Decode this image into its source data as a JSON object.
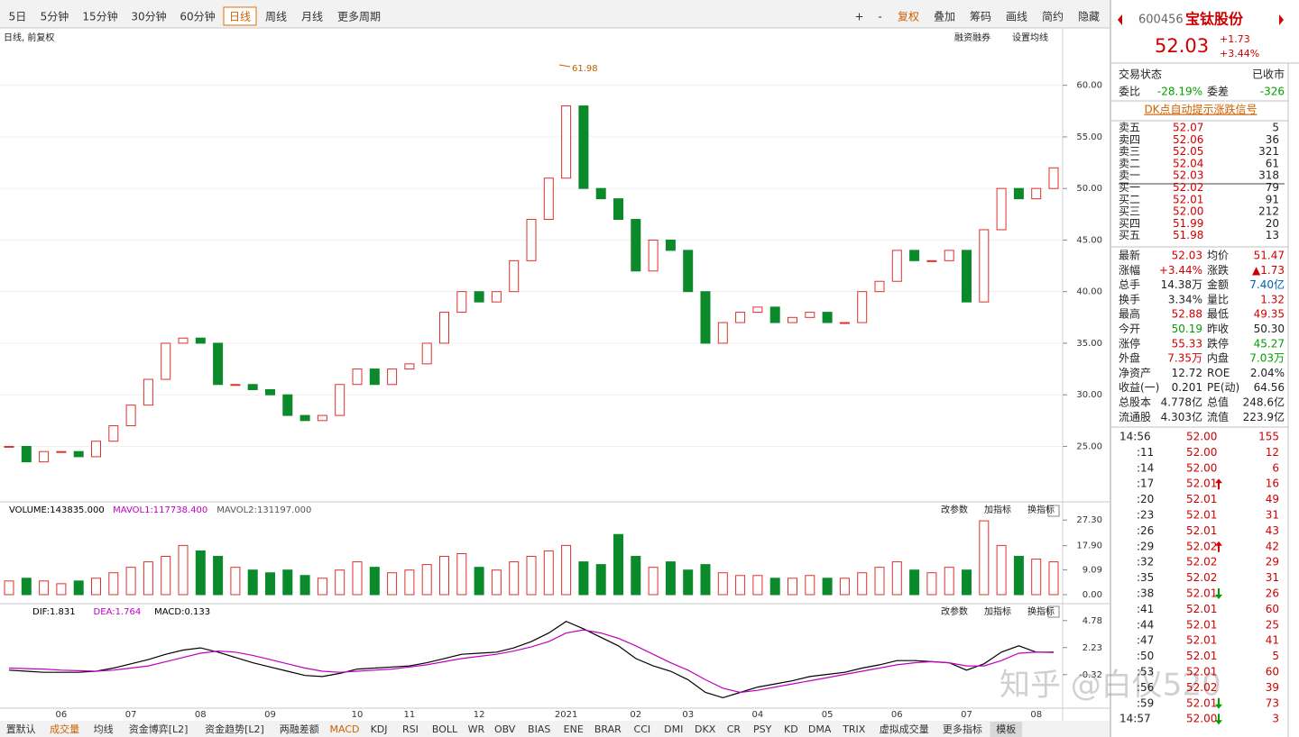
{
  "toolbar": {
    "left": [
      "5日",
      "5分钟",
      "15分钟",
      "30分钟",
      "60分钟",
      "日线",
      "周线",
      "月线",
      "更多周期"
    ],
    "active": 5,
    "right": [
      "+",
      "-",
      "复权",
      "叠加",
      "筹码",
      "画线",
      "简约",
      "隐藏"
    ]
  },
  "chart_data": [
    {
      "type": "candlestick",
      "title": "日线, 前复权",
      "links": [
        "融资融券",
        "设置均线"
      ],
      "up_color": "#e0302a",
      "down_color": "#0a8a2a",
      "grid": true,
      "categories": [
        null,
        null,
        null,
        "06",
        null,
        null,
        null,
        "07",
        null,
        null,
        null,
        "08",
        null,
        null,
        null,
        "09",
        null,
        null,
        null,
        null,
        "10",
        null,
        null,
        "11",
        null,
        null,
        null,
        "12",
        null,
        null,
        null,
        null,
        "2021",
        null,
        null,
        null,
        "02",
        null,
        null,
        "03",
        null,
        null,
        null,
        "04",
        null,
        null,
        null,
        "05",
        null,
        null,
        null,
        "06",
        null,
        null,
        null,
        "07",
        null,
        null,
        null,
        "08",
        null
      ],
      "values": [
        25,
        23.5,
        24.5,
        24.5,
        24,
        25.5,
        27,
        29,
        31.5,
        35,
        35.5,
        35,
        31,
        31,
        30.5,
        30,
        28,
        27.5,
        28,
        31,
        32.5,
        31,
        32.5,
        33,
        35,
        38,
        40,
        39,
        40,
        43,
        47,
        51,
        58,
        50,
        49,
        47,
        42,
        45,
        44,
        40,
        35,
        37,
        38,
        38.5,
        37,
        37.5,
        38,
        37,
        37,
        40,
        41,
        44,
        43,
        43,
        44,
        39,
        46,
        50,
        49,
        50,
        52
      ],
      "high": 61.98,
      "ylim": [
        19.8,
        63.9
      ],
      "yticks": [
        {
          "value": 25,
          "label": "25.00"
        },
        {
          "value": 30,
          "label": "30.00"
        },
        {
          "value": 35,
          "label": "35.00"
        },
        {
          "value": 40,
          "label": "40.00"
        },
        {
          "value": 45,
          "label": "45.00"
        },
        {
          "value": 50,
          "label": "50.00"
        },
        {
          "value": 55,
          "label": "55.00"
        },
        {
          "value": 60,
          "label": "60.00"
        }
      ]
    },
    {
      "type": "bar",
      "legend": [
        "VOLUME:143835.000",
        "MAVOL1:117738.400",
        "MAVOL2:131197.000"
      ],
      "legend_colors": [
        "#000000",
        "#c000c0",
        "#555555"
      ],
      "tools": [
        "改参数",
        "加指标",
        "换指标"
      ],
      "values": [
        5,
        6,
        5,
        4,
        5,
        6,
        8,
        10,
        12,
        14,
        18,
        16,
        14,
        10,
        9,
        8,
        9,
        7,
        6,
        9,
        12,
        10,
        8,
        9,
        11,
        14,
        15,
        10,
        9,
        12,
        14,
        16,
        18,
        12,
        11,
        22,
        14,
        10,
        12,
        9,
        11,
        8,
        7,
        7,
        6,
        6,
        7,
        6,
        6,
        8,
        10,
        12,
        9,
        8,
        10,
        9,
        27,
        18,
        14,
        13,
        12
      ],
      "ylim": [
        0,
        29
      ],
      "yticks": [
        {
          "value": 0,
          "label": "0.00"
        },
        {
          "value": 9.09,
          "label": "9.09"
        },
        {
          "value": 17.9,
          "label": "17.90"
        },
        {
          "value": 27.3,
          "label": "27.30"
        }
      ]
    },
    {
      "type": "line",
      "legend": [
        "DIF:1.831",
        "DEA:1.764",
        "MACD:0.133"
      ],
      "tools": [
        "改参数",
        "加指标",
        "换指标"
      ],
      "series": [
        {
          "name": "DIF",
          "color": "#000000",
          "values": [
            0.1,
            0.0,
            -0.1,
            -0.1,
            -0.1,
            0.0,
            0.3,
            0.7,
            1.1,
            1.6,
            2.0,
            2.2,
            1.8,
            1.3,
            0.8,
            0.4,
            0.0,
            -0.4,
            -0.5,
            -0.2,
            0.2,
            0.3,
            0.4,
            0.5,
            0.8,
            1.2,
            1.6,
            1.7,
            1.8,
            2.2,
            2.8,
            3.6,
            4.7,
            4.0,
            3.2,
            2.4,
            1.2,
            0.5,
            0.0,
            -0.8,
            -2.0,
            -2.5,
            -2.0,
            -1.5,
            -1.2,
            -0.9,
            -0.5,
            -0.3,
            -0.1,
            0.3,
            0.6,
            1.0,
            1.0,
            0.9,
            0.8,
            0.1,
            0.7,
            1.8,
            2.4,
            1.8,
            1.8
          ]
        },
        {
          "name": "DEA",
          "color": "#c000c0",
          "values": [
            0.3,
            0.25,
            0.2,
            0.1,
            0.05,
            0.0,
            0.1,
            0.3,
            0.5,
            0.9,
            1.3,
            1.7,
            1.9,
            1.8,
            1.5,
            1.1,
            0.7,
            0.3,
            0.0,
            -0.1,
            0.0,
            0.1,
            0.2,
            0.4,
            0.6,
            0.9,
            1.2,
            1.4,
            1.6,
            1.9,
            2.3,
            2.8,
            3.6,
            3.9,
            3.6,
            3.1,
            2.4,
            1.6,
            0.8,
            0.1,
            -0.8,
            -1.6,
            -2.0,
            -1.8,
            -1.5,
            -1.2,
            -0.9,
            -0.6,
            -0.3,
            0.0,
            0.3,
            0.6,
            0.8,
            0.9,
            0.8,
            0.5,
            0.5,
            1.0,
            1.7,
            1.8,
            1.76
          ]
        }
      ],
      "ylim": [
        -3.4,
        5.1
      ],
      "yticks": [
        -0.32,
        2.23,
        4.78
      ]
    }
  ],
  "quote": {
    "code": "600456",
    "name": "宝钛股份",
    "price": "52.03",
    "change": "+1.73",
    "pct": "+3.44%",
    "status": [
      "交易状态",
      "已收市"
    ],
    "ratio": [
      "委比",
      "-28.19%",
      "委差",
      "-326"
    ],
    "link": "DK点自动提示涨跌信号",
    "book": [
      [
        "卖五",
        "52.07",
        "5"
      ],
      [
        "卖四",
        "52.06",
        "36"
      ],
      [
        "卖三",
        "52.05",
        "321"
      ],
      [
        "卖二",
        "52.04",
        "61"
      ],
      [
        "卖一",
        "52.03",
        "318"
      ],
      [
        "买一",
        "52.02",
        "79"
      ],
      [
        "买二",
        "52.01",
        "91"
      ],
      [
        "买三",
        "52.00",
        "212"
      ],
      [
        "买四",
        "51.99",
        "20"
      ],
      [
        "买五",
        "51.98",
        "13"
      ]
    ],
    "stats": [
      {
        "l1": "最新",
        "v1": "52.03",
        "c1": "#d00000",
        "l2": "均价",
        "v2": "51.47",
        "c2": "#d00000"
      },
      {
        "l1": "涨幅",
        "v1": "+3.44%",
        "c1": "#d00000",
        "l2": "涨跌",
        "v2": "▲1.73",
        "c2": "#d00000"
      },
      {
        "l1": "总手",
        "v1": "14.38万",
        "c1": "#222222",
        "l2": "金额",
        "v2": "7.40亿",
        "c2": "#0060b0"
      },
      {
        "l1": "换手",
        "v1": "3.34%",
        "c1": "#222222",
        "l2": "量比",
        "v2": "1.32",
        "c2": "#d00000"
      },
      {
        "l1": "最高",
        "v1": "52.88",
        "c1": "#d00000",
        "l2": "最低",
        "v2": "49.35",
        "c2": "#d00000"
      },
      {
        "l1": "今开",
        "v1": "50.19",
        "c1": "#00a000",
        "l2": "昨收",
        "v2": "50.30",
        "c2": "#222222"
      },
      {
        "l1": "涨停",
        "v1": "55.33",
        "c1": "#d00000",
        "l2": "跌停",
        "v2": "45.27",
        "c2": "#00a000"
      },
      {
        "l1": "外盘",
        "v1": "7.35万",
        "c1": "#d00000",
        "l2": "内盘",
        "v2": "7.03万",
        "c2": "#00a000"
      },
      {
        "l1": "净资产",
        "v1": "12.72",
        "c1": "#222222",
        "l2": "ROE",
        "v2": "2.04%",
        "c2": "#222222"
      },
      {
        "l1": "收益(一)",
        "v1": "0.201",
        "c1": "#222222",
        "l2": "PE(动)",
        "v2": "64.56",
        "c2": "#222222"
      },
      {
        "l1": "总股本",
        "v1": "4.778亿",
        "c1": "#222222",
        "l2": "总值",
        "v2": "248.6亿",
        "c2": "#222222"
      },
      {
        "l1": "流通股",
        "v1": "4.303亿",
        "c1": "#222222",
        "l2": "流值",
        "v2": "223.9亿",
        "c2": "#222222"
      }
    ],
    "trades": [
      {
        "t": "14:56",
        "p": "52.00",
        "v": "155"
      },
      {
        "t": ":11",
        "p": "52.00",
        "v": "12"
      },
      {
        "t": ":14",
        "p": "52.00",
        "v": "6"
      },
      {
        "t": ":17",
        "p": "52.01",
        "v": "16",
        "dir": "up"
      },
      {
        "t": ":20",
        "p": "52.01",
        "v": "49"
      },
      {
        "t": ":23",
        "p": "52.01",
        "v": "31"
      },
      {
        "t": ":26",
        "p": "52.01",
        "v": "43"
      },
      {
        "t": ":29",
        "p": "52.02",
        "v": "42",
        "dir": "up"
      },
      {
        "t": ":32",
        "p": "52.02",
        "v": "29"
      },
      {
        "t": ":35",
        "p": "52.02",
        "v": "31"
      },
      {
        "t": ":38",
        "p": "52.01",
        "v": "26",
        "dir": "down"
      },
      {
        "t": ":41",
        "p": "52.01",
        "v": "60"
      },
      {
        "t": ":44",
        "p": "52.01",
        "v": "25"
      },
      {
        "t": ":47",
        "p": "52.01",
        "v": "41"
      },
      {
        "t": ":50",
        "p": "52.01",
        "v": "5"
      },
      {
        "t": ":53",
        "p": "52.01",
        "v": "60"
      },
      {
        "t": ":56",
        "p": "52.02",
        "v": "39"
      },
      {
        "t": ":59",
        "p": "52.01",
        "v": "73",
        "dir": "down"
      },
      {
        "t": "14:57",
        "p": "52.00",
        "v": "3",
        "dir": "down"
      }
    ]
  },
  "bottom_tabs": {
    "items": [
      "置默认",
      "成交量",
      "均线",
      "资金博弈[L2]",
      "资金趋势[L2]",
      "两融差额",
      "MACD",
      "KDJ",
      "RSI",
      "BOLL",
      "WR",
      "OBV",
      "BIAS",
      "ENE",
      "BRAR",
      "CCI",
      "DMI",
      "DKX",
      "CR",
      "PSY",
      "KD",
      "DMA",
      "TRIX",
      "虚拟成交量",
      "更多指标",
      "模板"
    ],
    "highlight": [
      1,
      6
    ]
  },
  "watermark": "知乎 @白仪520"
}
